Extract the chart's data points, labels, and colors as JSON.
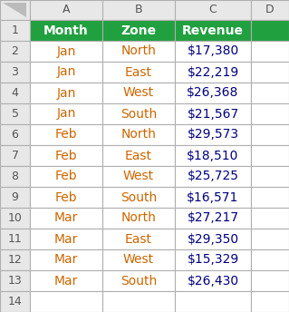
{
  "header": [
    "Month",
    "Zone",
    "Revenue"
  ],
  "rows": [
    [
      "Jan",
      "North",
      "$17,380"
    ],
    [
      "Jan",
      "East",
      "$22,219"
    ],
    [
      "Jan",
      "West",
      "$26,368"
    ],
    [
      "Jan",
      "South",
      "$21,567"
    ],
    [
      "Feb",
      "North",
      "$29,573"
    ],
    [
      "Feb",
      "East",
      "$18,510"
    ],
    [
      "Feb",
      "West",
      "$25,725"
    ],
    [
      "Feb",
      "South",
      "$16,571"
    ],
    [
      "Mar",
      "North",
      "$27,217"
    ],
    [
      "Mar",
      "East",
      "$29,350"
    ],
    [
      "Mar",
      "West",
      "$15,329"
    ],
    [
      "Mar",
      "South",
      "$26,430"
    ]
  ],
  "header_bg": "#21A040",
  "header_fg": "#FFFFFF",
  "row_bg": "#FFFFFF",
  "row_fg_month": "#CC6600",
  "row_fg_zone": "#CC6600",
  "row_fg_revenue": "#000080",
  "grid_color": "#B0B0B0",
  "row_num_fg": "#555555",
  "col_header_fg": "#555555",
  "header_fontsize": 10,
  "cell_fontsize": 10,
  "figsize": [
    3.19,
    3.44
  ],
  "dpi": 100,
  "fig_bg": "#F0F0F0",
  "col_header_bg": "#E8E8E8",
  "row_num_bg": "#E8E8E8"
}
